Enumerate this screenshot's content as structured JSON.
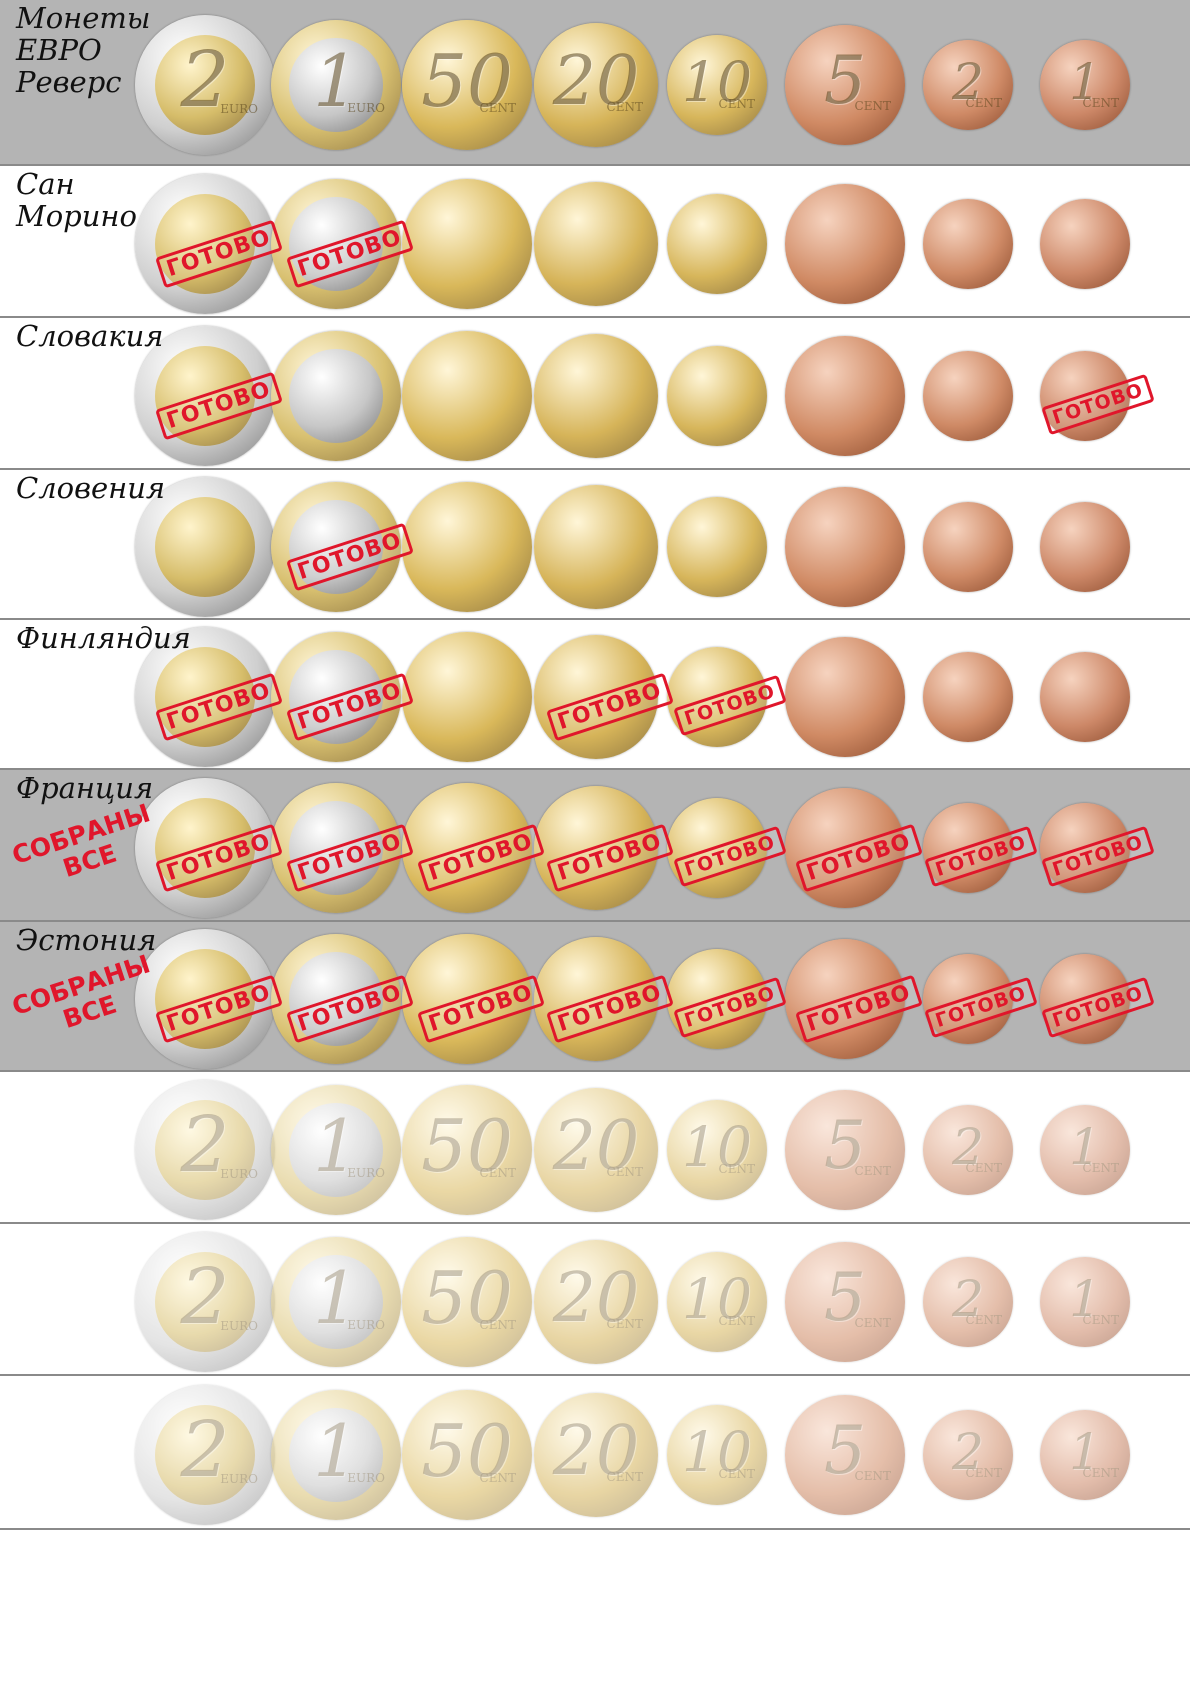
{
  "coin_order": [
    "2 EURO",
    "1 EURO",
    "50 CENT",
    "20 CENT",
    "10 CENT",
    "5 CENT",
    "2 CENT",
    "1 CENT"
  ],
  "stamp_text": "ГОТОВО",
  "collected_text": "СОБРАНЫ\nВСЕ",
  "rows": [
    {
      "title": "Монеты\nЕВРО\n  Реверс",
      "done": [],
      "all_collected": false,
      "faded": false
    },
    {
      "title": "Сан\nМорино",
      "done": [
        0,
        1
      ],
      "all_collected": false,
      "faded": false
    },
    {
      "title": "Словакия",
      "done": [
        0,
        7
      ],
      "all_collected": false,
      "faded": false
    },
    {
      "title": "Словения",
      "done": [
        1
      ],
      "all_collected": false,
      "faded": false
    },
    {
      "title": "Финляндия",
      "done": [
        0,
        1,
        3,
        4
      ],
      "all_collected": false,
      "faded": false
    },
    {
      "title": "Франция",
      "done": [
        0,
        1,
        2,
        3,
        4,
        5,
        6,
        7
      ],
      "all_collected": true,
      "faded": false
    },
    {
      "title": "Эстония",
      "done": [
        0,
        1,
        2,
        3,
        4,
        5,
        6,
        7
      ],
      "all_collected": true,
      "faded": false
    },
    {
      "title": "",
      "done": [],
      "all_collected": false,
      "faded": true
    },
    {
      "title": "",
      "done": [],
      "all_collected": false,
      "faded": true
    },
    {
      "title": "",
      "done": [],
      "all_collected": false,
      "faded": true
    }
  ],
  "coin_values": [
    "2",
    "1",
    "50",
    "20",
    "10",
    "5",
    "2",
    "1"
  ],
  "coin_units": [
    "EURO",
    "EURO",
    "CENT",
    "CENT",
    "CENT",
    "CENT",
    "CENT",
    "CENT"
  ]
}
